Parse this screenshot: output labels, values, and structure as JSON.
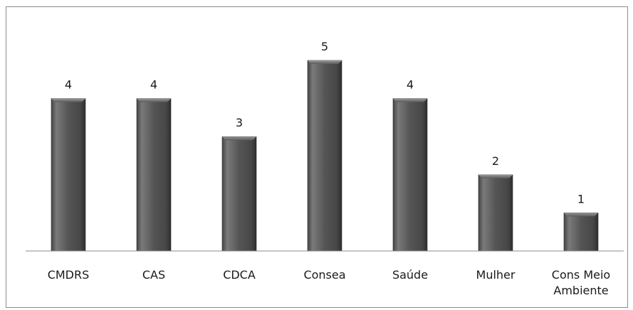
{
  "chart_data": {
    "type": "bar",
    "categories": [
      [
        "CMDRS"
      ],
      [
        "CAS"
      ],
      [
        "CDCA"
      ],
      [
        "Consea"
      ],
      [
        "Saúde"
      ],
      [
        "Mulher"
      ],
      [
        "Cons Meio",
        "Ambiente"
      ]
    ],
    "values": [
      4,
      4,
      3,
      5,
      4,
      2,
      1
    ],
    "title": "",
    "xlabel": "",
    "ylabel": "",
    "ylim": [
      0,
      5
    ],
    "grid": false,
    "legend": "none",
    "colors": {
      "bar_dark": "#3a3a3a",
      "bar_mid": "#646464",
      "bar_light": "#8a8a8a",
      "axis": "#8c8c8c",
      "frame": "#8c8c8c"
    }
  }
}
